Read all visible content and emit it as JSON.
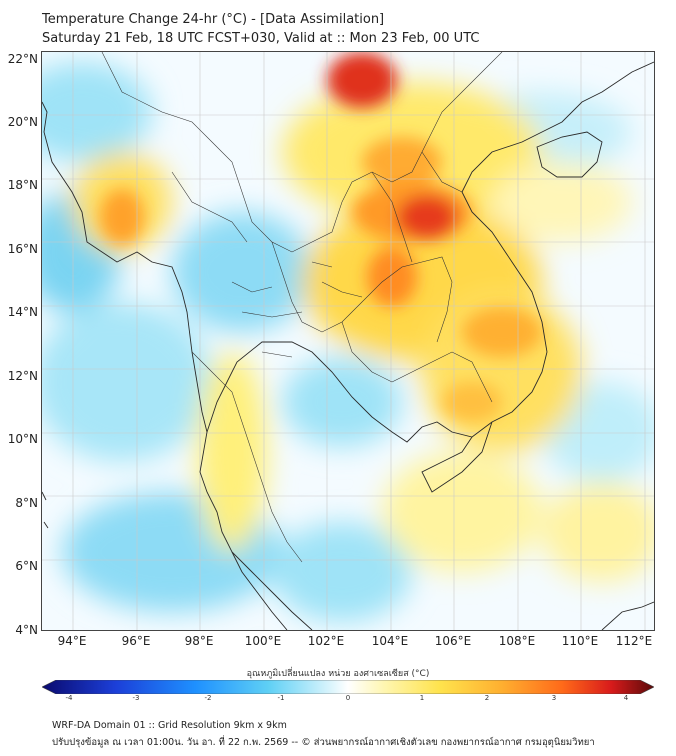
{
  "header": {
    "title": "Temperature Change 24-hr (°C) - [Data Assimilation]",
    "subtitle": "Saturday 21 Feb, 18 UTC FCST+030, Valid at :: Mon 23 Feb, 00 UTC"
  },
  "axes": {
    "lat_labels": [
      "22°N",
      "20°N",
      "18°N",
      "16°N",
      "14°N",
      "12°N",
      "10°N",
      "8°N",
      "6°N",
      "4°N"
    ],
    "lat_values": [
      22,
      20,
      18,
      16,
      14,
      12,
      10,
      8,
      6,
      4
    ],
    "lon_labels": [
      "94°E",
      "96°E",
      "98°E",
      "100°E",
      "102°E",
      "104°E",
      "106°E",
      "108°E",
      "110°E",
      "112°E"
    ],
    "lon_values": [
      94,
      96,
      98,
      100,
      102,
      104,
      106,
      108,
      110,
      112
    ],
    "lon_range": [
      93,
      112.3
    ],
    "lat_range": [
      4,
      22.3
    ]
  },
  "colorbar": {
    "title": "อุณหภูมิเปลี่ยนแปลง หน่วย องศาเซลเซียส (°C)",
    "ticks": [
      "-4",
      "-3",
      "-2",
      "-1",
      "0",
      "1",
      "2",
      "3",
      "4"
    ],
    "tick_values": [
      -4,
      -3,
      -2,
      -1,
      0,
      1,
      2,
      3,
      4
    ],
    "range": [
      -4,
      4
    ]
  },
  "colors": {
    "strong_cold": "#1a1a8c",
    "cold": "#1e90ff",
    "cool": "#7fd9f5",
    "neutral": "#ffffff",
    "warm": "#ffe34d",
    "hot": "#ff8c1a",
    "very_hot": "#e02020",
    "extreme": "#6e0b0b"
  },
  "footer": {
    "line1": "WRF-DA Domain 01 :: Grid Resolution 9km x 9km",
    "line2": "ปรับปรุงข้อมูล ณ เวลา 01:00น. วัน อา. ที่ 22 ก.พ. 2569 -- © ส่วนพยากรณ์อากาศเชิงตัวเลข กองพยากรณ์อากาศ กรมอุตุนิยมวิทยา"
  }
}
